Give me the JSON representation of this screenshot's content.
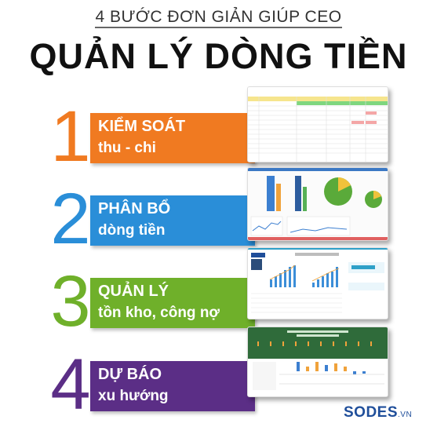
{
  "header": {
    "kicker": "4 BƯỚC ĐƠN GIẢN GIÚP CEO",
    "headline": "QUẢN LÝ DÒNG TIỀN"
  },
  "steps": [
    {
      "number": "1",
      "line1": "KIỂM SOÁT",
      "line2": "thu - chi",
      "color": "#f07a21"
    },
    {
      "number": "2",
      "line1": "PHÂN BỔ",
      "line2": "dòng tiền",
      "color": "#2a8ed8"
    },
    {
      "number": "3",
      "line1": "QUẢN LÝ",
      "line2": "tồn kho, công nợ",
      "color": "#6fb02a"
    },
    {
      "number": "4",
      "line1": "DỰ BÁO",
      "line2": "xu hướng",
      "color": "#5b2e86"
    }
  ],
  "brand": {
    "logo": "SODES",
    "suffix": ".VN"
  }
}
